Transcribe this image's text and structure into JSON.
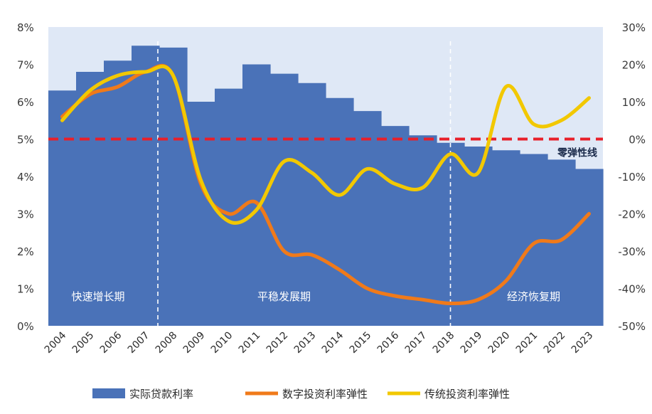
{
  "chart_data": {
    "type": "bar",
    "categories": [
      "2004",
      "2005",
      "2006",
      "2007",
      "2008",
      "2009",
      "2010",
      "2011",
      "2012",
      "2013",
      "2014",
      "2015",
      "2016",
      "2017",
      "2018",
      "2019",
      "2020",
      "2021",
      "2022",
      "2023"
    ],
    "y_left": {
      "ylim": [
        0,
        8
      ],
      "ticks": [
        "0%",
        "1%",
        "2%",
        "3%",
        "4%",
        "5%",
        "6%",
        "7%",
        "8%"
      ]
    },
    "y_right": {
      "ylim": [
        -50,
        30
      ],
      "ticks": [
        "-50%",
        "-40%",
        "-30%",
        "-20%",
        "-10%",
        "0%",
        "10%",
        "20%",
        "30%"
      ]
    },
    "series": [
      {
        "name": "实际贷款利率",
        "kind": "bar",
        "axis": "left",
        "color": "#4a72b8",
        "values": [
          6.3,
          6.8,
          7.1,
          7.5,
          7.45,
          6.0,
          6.35,
          7.0,
          6.75,
          6.5,
          6.1,
          5.75,
          5.35,
          5.1,
          4.9,
          4.8,
          4.7,
          4.6,
          4.45,
          4.2
        ]
      },
      {
        "name": "数字投资利率弹性",
        "kind": "line",
        "axis": "right",
        "color": "#f07a1a",
        "values": [
          6,
          12,
          14,
          18,
          17,
          -12,
          -20,
          -17,
          -30,
          -31,
          -35,
          -40,
          -42,
          -43,
          -44,
          -43,
          -38,
          -28,
          -27,
          -20
        ]
      },
      {
        "name": "传统投资利率弹性",
        "kind": "line",
        "axis": "right",
        "color": "#f2c800",
        "values": [
          5,
          13,
          17,
          18,
          17,
          -11,
          -22,
          -19,
          -6,
          -9,
          -15,
          -8,
          -12,
          -13,
          -4,
          -9,
          14,
          4,
          5,
          11
        ]
      }
    ],
    "reference_line": {
      "label": "零弹性线",
      "value": 0,
      "axis": "right",
      "color": "#e8202a"
    },
    "periods": [
      {
        "label": "快速增长期"
      },
      {
        "label": "平稳发展期"
      },
      {
        "label": "经济恢复期"
      }
    ],
    "legend_position": "bottom"
  }
}
